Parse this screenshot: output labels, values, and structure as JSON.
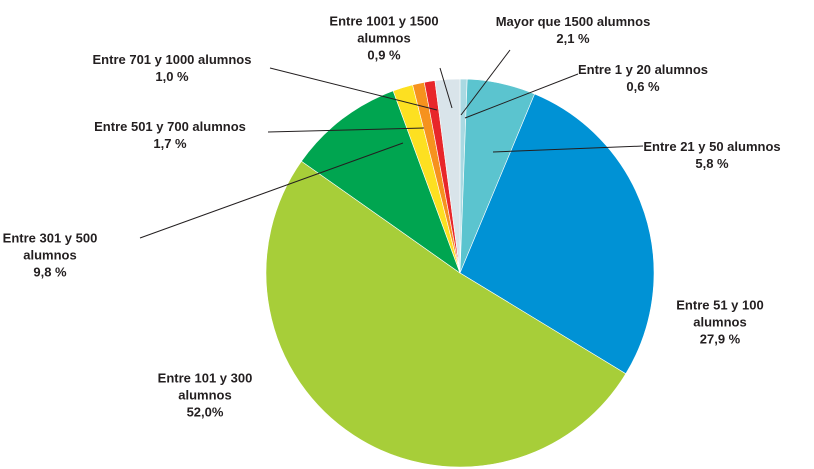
{
  "chart_data": {
    "type": "pie",
    "categories": [
      "Entre 1 y 20 alumnos",
      "Entre 21 y 50 alumnos",
      "Entre 51 y 100 alumnos",
      "Entre 101 y 300 alumnos",
      "Entre 301 y 500 alumnos",
      "Entre 501 y 700 alumnos",
      "Entre 701 y 1000 alumnos",
      "Entre 1001 y 1500 alumnos",
      "Mayor que 1500 alumnos"
    ],
    "values": [
      0.6,
      5.8,
      27.9,
      52.0,
      9.8,
      1.7,
      1.0,
      0.9,
      2.1
    ],
    "value_labels": [
      "0,6 %",
      "5,8 %",
      "27,9 %",
      "52,0%",
      "9,8 %",
      "1,7 %",
      "1,0 %",
      "0,9 %",
      "2,1 %"
    ],
    "colors": [
      "#a9d9e2",
      "#5bc4cf",
      "#0092d5",
      "#a7ce39",
      "#00a550",
      "#fde021",
      "#f6921e",
      "#e8262a",
      "#d9e4ea"
    ]
  }
}
